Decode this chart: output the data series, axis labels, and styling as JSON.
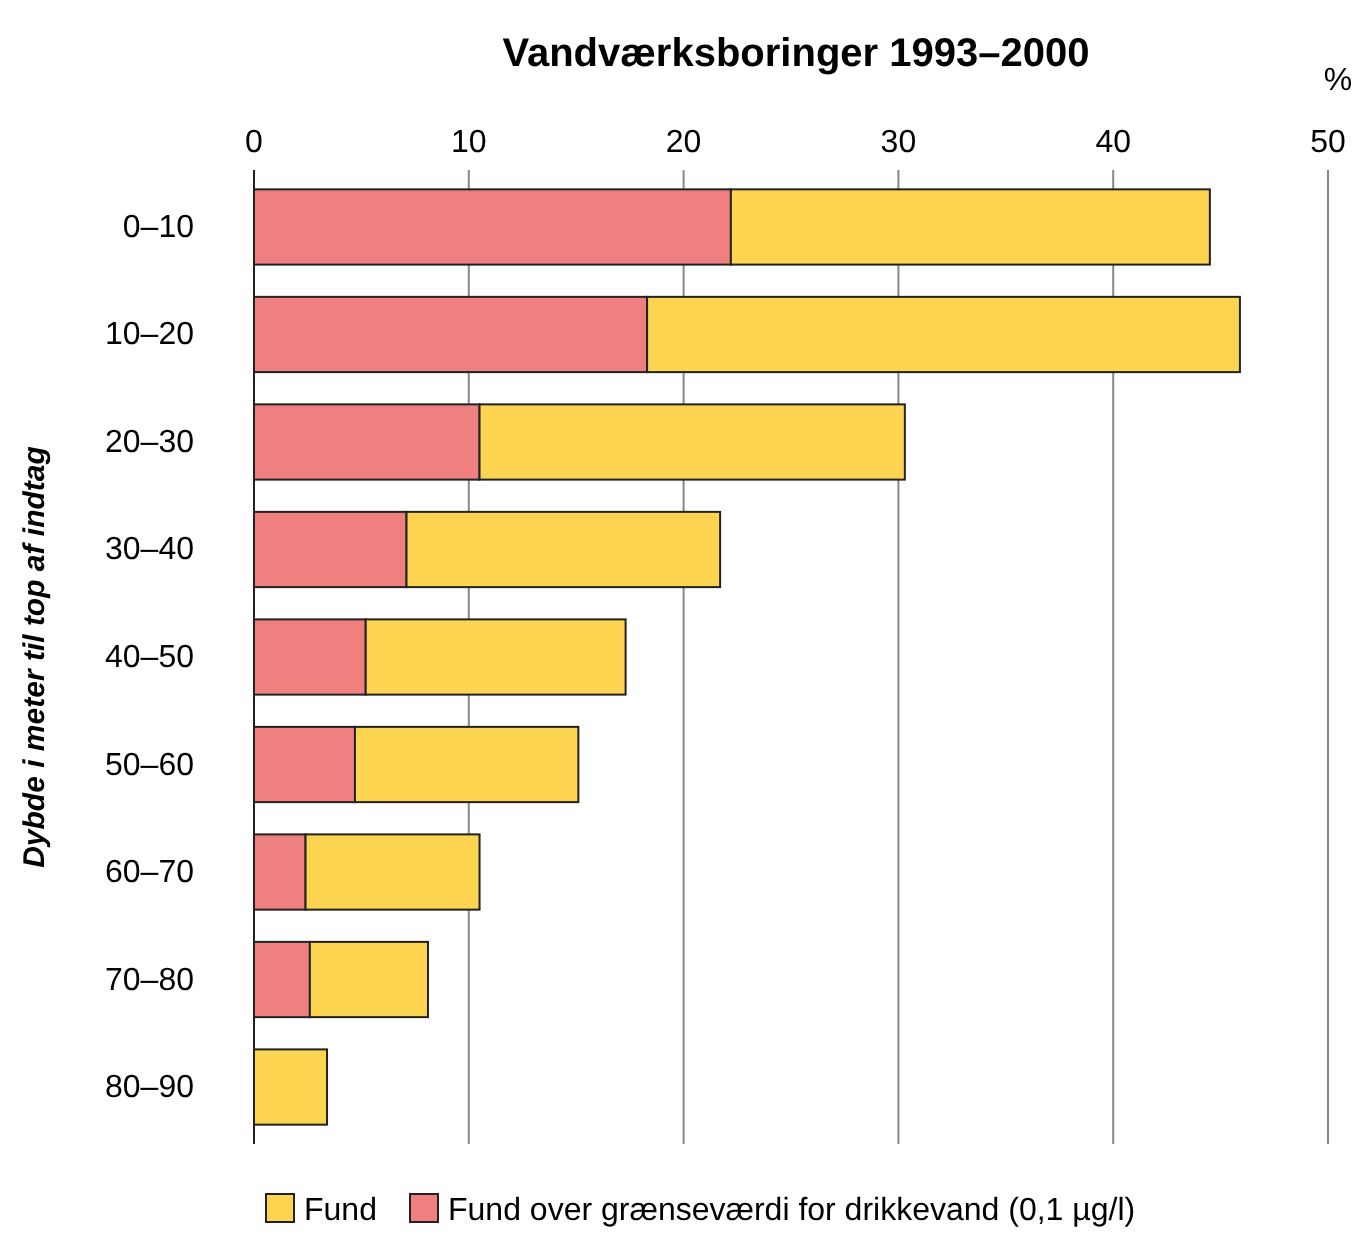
{
  "chart_data": {
    "type": "bar",
    "orientation": "horizontal",
    "stacked": true,
    "title": "Vandværksboringer 1993–2000",
    "ylabel": "Dybde i meter til top af indtag",
    "xlabel": "%",
    "categories": [
      "0–10",
      "10–20",
      "20–30",
      "30–40",
      "40–50",
      "50–60",
      "60–70",
      "70–80",
      "80–90"
    ],
    "series": [
      {
        "name": "Fund over grænseværdi for drikkevand (0,1 µg/l)",
        "color": "#f08080",
        "values": [
          22.2,
          18.3,
          10.5,
          7.1,
          5.2,
          4.7,
          2.4,
          2.6,
          null
        ]
      },
      {
        "name": "Fund",
        "color": "#fdd44f",
        "values": [
          22.3,
          27.6,
          19.8,
          14.6,
          12.1,
          10.4,
          8.1,
          5.5,
          3.4
        ]
      }
    ],
    "xlim": [
      0,
      50
    ],
    "xticks": [
      0,
      10,
      20,
      30,
      40,
      50
    ],
    "grid": "x",
    "legend": "bottom"
  }
}
